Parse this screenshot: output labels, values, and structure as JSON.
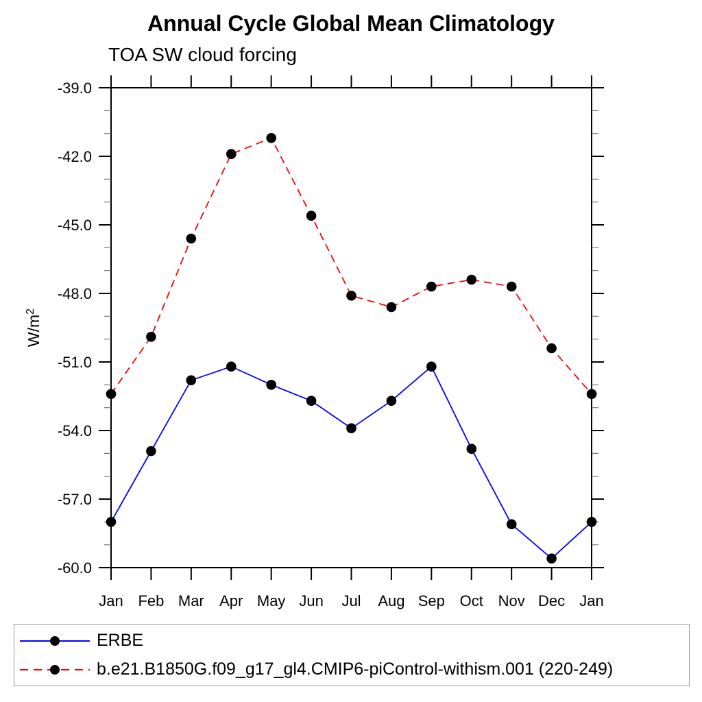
{
  "chart_data": {
    "type": "line",
    "title": "Annual Cycle Global Mean Climatology",
    "subtitle": "TOA SW cloud forcing",
    "ylabel": {
      "base": "W/m",
      "sup": "2"
    },
    "x_categories": [
      "Jan",
      "Feb",
      "Mar",
      "Apr",
      "May",
      "Jun",
      "Jul",
      "Aug",
      "Sep",
      "Oct",
      "Nov",
      "Dec",
      "Jan"
    ],
    "y_axis": {
      "min": -60.0,
      "max": -39.0,
      "major_tick_interval": 3.0,
      "minor_tick_interval": 1.0,
      "tick_labels": [
        "-39.0",
        "-42.0",
        "-45.0",
        "-48.0",
        "-51.0",
        "-54.0",
        "-57.0",
        "-60.0"
      ]
    },
    "grid": false,
    "legend_position": "bottom",
    "series": [
      {
        "name": "ERBE",
        "color": "#0000ff",
        "line_style": "solid",
        "marker": "filled-circle",
        "marker_color": "#000000",
        "values": [
          -58.0,
          -54.9,
          -51.8,
          -51.2,
          -52.0,
          -52.7,
          -53.9,
          -52.7,
          -51.2,
          -54.8,
          -58.1,
          -59.6,
          -58.0
        ]
      },
      {
        "name": "b.e21.B1850G.f09_g17_gl4.CMIP6-piControl-withism.001 (220-249)",
        "color": "#ff0000",
        "line_style": "dashed",
        "marker": "filled-circle",
        "marker_color": "#000000",
        "values": [
          -52.4,
          -49.9,
          -45.6,
          -41.9,
          -41.2,
          -44.6,
          -48.1,
          -48.6,
          -47.7,
          -47.4,
          -47.7,
          -50.4,
          -52.4
        ]
      }
    ]
  }
}
